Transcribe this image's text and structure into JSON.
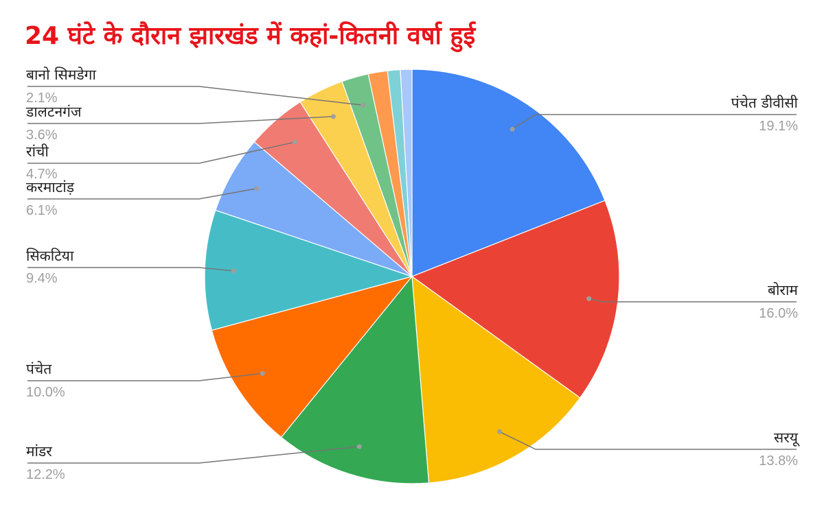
{
  "chart_data": {
    "type": "pie",
    "title": "24 घंटे के दौरान झारखंड में कहां-कितनी वर्षा हुई",
    "slices": [
      {
        "name": "पंचेत डीवीसी",
        "value": 19.1,
        "label": "19.1%",
        "color": "#4285f4"
      },
      {
        "name": "बोराम",
        "value": 16.0,
        "label": "16.0%",
        "color": "#ea4335"
      },
      {
        "name": "सरयू",
        "value": 13.8,
        "label": "13.8%",
        "color": "#fbbc04"
      },
      {
        "name": "मांडर",
        "value": 12.2,
        "label": "12.2%",
        "color": "#34a853"
      },
      {
        "name": "पंचेत",
        "value": 10.0,
        "label": "10.0%",
        "color": "#ff6d01"
      },
      {
        "name": "सिकटिया",
        "value": 9.4,
        "label": "9.4%",
        "color": "#46bdc6"
      },
      {
        "name": "करमाटांड़",
        "value": 6.1,
        "label": "6.1%",
        "color": "#7baaf7"
      },
      {
        "name": "रांची",
        "value": 4.7,
        "label": "4.7%",
        "color": "#f07b72"
      },
      {
        "name": "डालटनगंज",
        "value": 3.6,
        "label": "3.6%",
        "color": "#fcd04f"
      },
      {
        "name": "बानो सिमडेगा",
        "value": 2.1,
        "label": "2.1%",
        "color": "#71c287"
      },
      {
        "name": "",
        "value": 1.5,
        "label": "",
        "color": "#ff994d"
      },
      {
        "name": "",
        "value": 1.0,
        "label": "",
        "color": "#7ed1d7"
      },
      {
        "name": "",
        "value": 0.9,
        "label": "",
        "color": "#a8c7fa"
      }
    ],
    "legend": "callout-labels"
  }
}
